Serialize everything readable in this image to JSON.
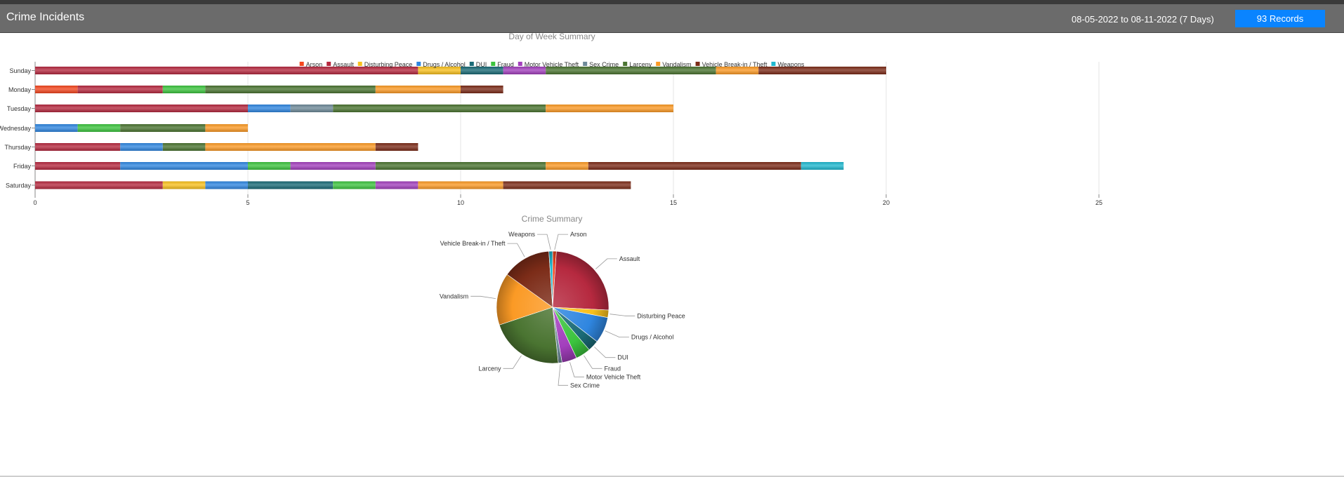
{
  "header": {
    "title": "Crime Incidents",
    "date_range": "08-05-2022 to 08-11-2022 (7 Days)",
    "records_label": "93 Records"
  },
  "colors": {
    "Arson": "#f4461e",
    "Assault": "#b6293f",
    "Disturbing Peace": "#f8c01d",
    "Drugs / Alcohol": "#2f86e0",
    "DUI": "#1a6a76",
    "Fraud": "#3cc43e",
    "Motor Vehicle Theft": "#a33fbd",
    "Sex Crime": "#6e8a99",
    "Larceny": "#4a7431",
    "Vandalism": "#fb9a25",
    "Vehicle Break-in / Theft": "#7c2c18",
    "Weapons": "#1fb8cf"
  },
  "chart_data": [
    {
      "type": "bar",
      "orientation": "horizontal",
      "stacked": true,
      "title": "Day of Week Summary",
      "legend_position": "top",
      "grid": true,
      "categories": [
        "Sunday",
        "Monday",
        "Tuesday",
        "Wednesday",
        "Thursday",
        "Friday",
        "Saturday"
      ],
      "x_ticks": [
        "0",
        "5",
        "10",
        "15",
        "20",
        "25"
      ],
      "xlim": [
        0,
        25
      ],
      "series": [
        {
          "name": "Arson",
          "values": [
            0,
            1,
            0,
            0,
            0,
            0,
            0
          ]
        },
        {
          "name": "Assault",
          "values": [
            9,
            2,
            5,
            0,
            2,
            2,
            3
          ]
        },
        {
          "name": "Disturbing Peace",
          "values": [
            1,
            0,
            0,
            0,
            0,
            0,
            1
          ]
        },
        {
          "name": "Drugs / Alcohol",
          "values": [
            0,
            0,
            1,
            1,
            1,
            3,
            1
          ]
        },
        {
          "name": "DUI",
          "values": [
            1,
            0,
            0,
            0,
            0,
            0,
            2
          ]
        },
        {
          "name": "Fraud",
          "values": [
            0,
            1,
            0,
            1,
            0,
            1,
            1
          ]
        },
        {
          "name": "Motor Vehicle Theft",
          "values": [
            1,
            0,
            0,
            0,
            0,
            2,
            1
          ]
        },
        {
          "name": "Sex Crime",
          "values": [
            0,
            0,
            1,
            0,
            0,
            0,
            0
          ]
        },
        {
          "name": "Larceny",
          "values": [
            4,
            4,
            5,
            2,
            1,
            4,
            0
          ]
        },
        {
          "name": "Vandalism",
          "values": [
            1,
            2,
            3,
            1,
            4,
            1,
            2
          ]
        },
        {
          "name": "Vehicle Break-in / Theft",
          "values": [
            3,
            1,
            0,
            0,
            1,
            5,
            3
          ]
        },
        {
          "name": "Weapons",
          "values": [
            0,
            0,
            0,
            0,
            0,
            1,
            0
          ]
        }
      ]
    },
    {
      "type": "pie",
      "title": "Crime Summary",
      "slices": [
        {
          "label": "Arson",
          "value": 1
        },
        {
          "label": "Assault",
          "value": 23
        },
        {
          "label": "Disturbing Peace",
          "value": 2
        },
        {
          "label": "Drugs / Alcohol",
          "value": 7
        },
        {
          "label": "DUI",
          "value": 3
        },
        {
          "label": "Fraud",
          "value": 4
        },
        {
          "label": "Motor Vehicle Theft",
          "value": 4
        },
        {
          "label": "Sex Crime",
          "value": 1
        },
        {
          "label": "Larceny",
          "value": 20
        },
        {
          "label": "Vandalism",
          "value": 14
        },
        {
          "label": "Vehicle Break-in / Theft",
          "value": 13
        },
        {
          "label": "Weapons",
          "value": 1
        }
      ]
    }
  ]
}
